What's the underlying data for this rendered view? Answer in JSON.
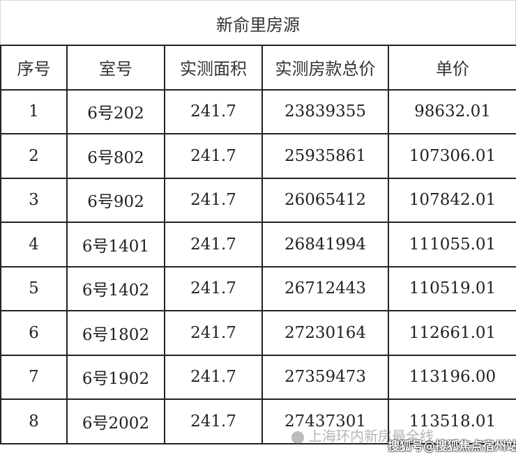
{
  "title": "新俞里房源",
  "headers": [
    "序号",
    "室号",
    "实测面积",
    "实测房款总价",
    "单价"
  ],
  "rows": [
    [
      "1",
      "6号202",
      "241.7",
      "23839355",
      "98632.01"
    ],
    [
      "2",
      "6号802",
      "241.7",
      "25935861",
      "107306.01"
    ],
    [
      "3",
      "6号902",
      "241.7",
      "26065412",
      "107842.01"
    ],
    [
      "4",
      "6号1401",
      "241.7",
      "26841994",
      "111055.01"
    ],
    [
      "5",
      "6号1402",
      "241.7",
      "26712443",
      "110519.01"
    ],
    [
      "6",
      "6号1802",
      "241.7",
      "27230164",
      "112661.01"
    ],
    [
      "7",
      "6号1902",
      "241.7",
      "27359473",
      "113196.00"
    ],
    [
      "8",
      "6号2002",
      "241.7",
      "27437301",
      "113518.01"
    ]
  ],
  "watermark": {
    "text": "上海环内新房最全线",
    "source": "搜狐号@搜狐焦点宿州站"
  }
}
